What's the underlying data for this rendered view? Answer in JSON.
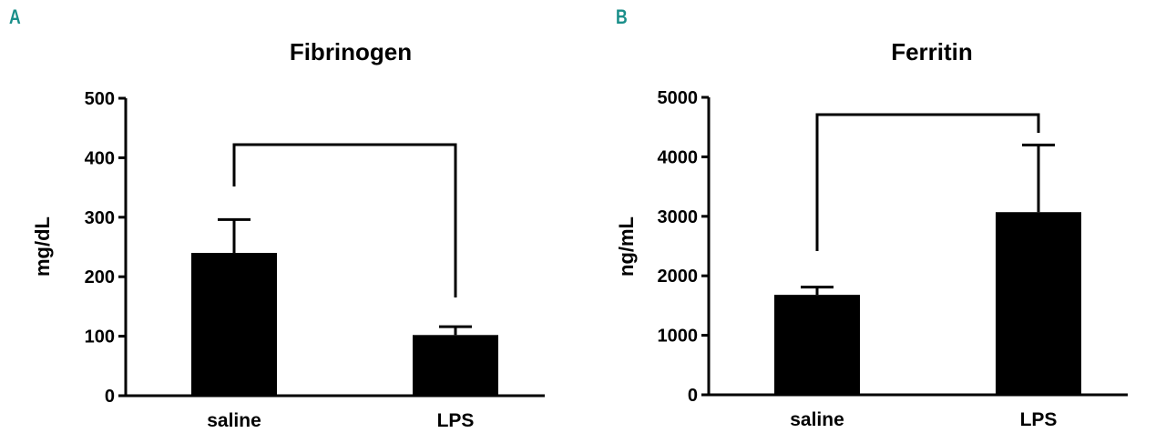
{
  "panels": [
    {
      "letter": "A"
    },
    {
      "letter": "B"
    }
  ],
  "chart_data": [
    {
      "type": "bar",
      "title": "Fibrinogen",
      "xlabel": "",
      "ylabel": "mg/dL",
      "ylim": [
        0,
        500
      ],
      "yticks": [
        0,
        100,
        200,
        300,
        400,
        500
      ],
      "categories": [
        "saline",
        "LPS"
      ],
      "values": [
        240,
        102
      ],
      "error_upper": [
        296,
        116
      ],
      "significance_bracket": {
        "between": [
          "saline",
          "LPS"
        ],
        "label": ""
      },
      "grid": false,
      "bar_color": "#000000"
    },
    {
      "type": "bar",
      "title": "Ferritin",
      "xlabel": "",
      "ylabel": "ng/mL",
      "ylim": [
        0,
        5000
      ],
      "yticks": [
        0,
        1000,
        2000,
        3000,
        4000,
        5000
      ],
      "categories": [
        "saline",
        "LPS"
      ],
      "values": [
        1680,
        3070
      ],
      "error_upper": [
        1810,
        4200
      ],
      "significance_bracket": {
        "between": [
          "saline",
          "LPS"
        ],
        "label": ""
      },
      "grid": false,
      "bar_color": "#000000"
    }
  ]
}
